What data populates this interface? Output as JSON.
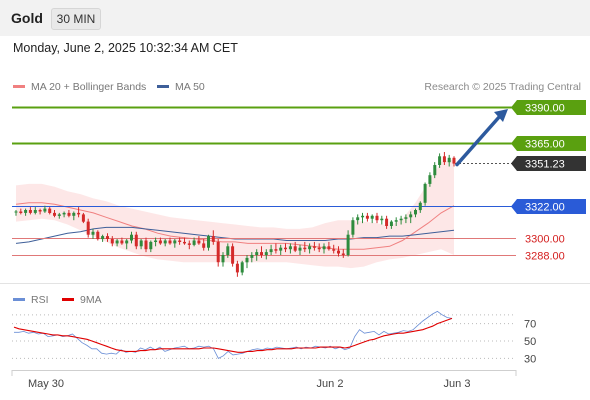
{
  "header": {
    "symbol": "Gold",
    "timeframe": "30 MIN",
    "datetime": "Monday, June 2, 2025 10:32:34 AM CET",
    "watermark": "Research © 2025 Trading Central"
  },
  "legend": {
    "ma20": "MA 20 + Bollinger Bands",
    "ma50": "MA 50",
    "rsi": "RSI",
    "rsi_ma": "9MA"
  },
  "colors": {
    "up": "#2e8b3d",
    "down": "#d42a2a",
    "ma20": "#f08080",
    "ma50": "#3e5f99",
    "band": "#fde3e3",
    "target": "#5aa010",
    "pivot": "#2a5bd7",
    "support": "#e07878",
    "current": "#333333",
    "arrow": "#2d5a9e",
    "rsi": "#6b8fd6",
    "rsi_ma": "#e00000"
  },
  "chart_data": [
    {
      "type": "candlestick",
      "title": "Gold",
      "timeframe": "30 MIN",
      "x_ticks": [
        "May 30",
        "Jun 2",
        "Jun 3"
      ],
      "y_range": [
        3270,
        3400
      ],
      "levels": [
        {
          "label": "3390.00",
          "value": 3390.0,
          "kind": "resistance"
        },
        {
          "label": "3365.00",
          "value": 3365.0,
          "kind": "resistance"
        },
        {
          "label": "3351.23",
          "value": 3351.23,
          "kind": "current"
        },
        {
          "label": "3322.00",
          "value": 3322.0,
          "kind": "pivot"
        },
        {
          "label": "3300.00",
          "value": 3300.0,
          "kind": "support"
        },
        {
          "label": "3288.00",
          "value": 3288.0,
          "kind": "support"
        }
      ],
      "forecast_arrow": {
        "from": 3351,
        "to": 3390,
        "direction": "up"
      },
      "candles": [
        [
          3318,
          3319,
          3315,
          3318
        ],
        [
          3318,
          3320,
          3316,
          3317
        ],
        [
          3317,
          3320,
          3315,
          3319
        ],
        [
          3319,
          3321,
          3316,
          3317
        ],
        [
          3317,
          3321,
          3316,
          3319
        ],
        [
          3319,
          3320,
          3316,
          3318
        ],
        [
          3318,
          3322,
          3317,
          3320
        ],
        [
          3320,
          3321,
          3316,
          3317
        ],
        [
          3317,
          3319,
          3314,
          3315
        ],
        [
          3315,
          3317,
          3313,
          3316
        ],
        [
          3316,
          3318,
          3314,
          3317
        ],
        [
          3317,
          3319,
          3314,
          3315
        ],
        [
          3315,
          3318,
          3312,
          3317
        ],
        [
          3317,
          3321,
          3314,
          3316
        ],
        [
          3316,
          3317,
          3310,
          3311
        ],
        [
          3311,
          3313,
          3300,
          3302
        ],
        [
          3302,
          3306,
          3299,
          3304
        ],
        [
          3304,
          3305,
          3298,
          3299
        ],
        [
          3299,
          3302,
          3297,
          3301
        ],
        [
          3301,
          3303,
          3297,
          3299
        ],
        [
          3299,
          3301,
          3294,
          3296
        ],
        [
          3296,
          3299,
          3294,
          3298
        ],
        [
          3298,
          3300,
          3295,
          3296
        ],
        [
          3296,
          3299,
          3292,
          3298
        ],
        [
          3298,
          3304,
          3296,
          3302
        ],
        [
          3302,
          3304,
          3292,
          3294
        ],
        [
          3294,
          3299,
          3292,
          3298
        ],
        [
          3298,
          3300,
          3290,
          3292
        ],
        [
          3292,
          3298,
          3290,
          3297
        ],
        [
          3297,
          3300,
          3294,
          3298
        ],
        [
          3298,
          3300,
          3295,
          3296
        ],
        [
          3296,
          3299,
          3294,
          3298
        ],
        [
          3298,
          3300,
          3295,
          3296
        ],
        [
          3296,
          3299,
          3293,
          3298
        ],
        [
          3298,
          3300,
          3295,
          3297
        ],
        [
          3297,
          3300,
          3295,
          3296
        ],
        [
          3296,
          3298,
          3292,
          3295
        ],
        [
          3295,
          3300,
          3294,
          3298
        ],
        [
          3298,
          3301,
          3295,
          3296
        ],
        [
          3296,
          3299,
          3291,
          3293
        ],
        [
          3293,
          3302,
          3291,
          3301
        ],
        [
          3301,
          3305,
          3295,
          3297
        ],
        [
          3297,
          3299,
          3280,
          3283
        ],
        [
          3283,
          3290,
          3280,
          3288
        ],
        [
          3288,
          3296,
          3286,
          3294
        ],
        [
          3294,
          3296,
          3280,
          3282
        ],
        [
          3282,
          3284,
          3273,
          3276
        ],
        [
          3276,
          3284,
          3274,
          3283
        ],
        [
          3283,
          3288,
          3279,
          3286
        ],
        [
          3286,
          3290,
          3283,
          3288
        ],
        [
          3288,
          3292,
          3284,
          3290
        ],
        [
          3290,
          3294,
          3286,
          3288
        ],
        [
          3288,
          3292,
          3285,
          3290
        ],
        [
          3290,
          3295,
          3288,
          3292
        ],
        [
          3292,
          3296,
          3289,
          3291
        ],
        [
          3291,
          3295,
          3288,
          3293
        ],
        [
          3293,
          3296,
          3290,
          3292
        ],
        [
          3292,
          3296,
          3289,
          3294
        ],
        [
          3294,
          3297,
          3290,
          3291
        ],
        [
          3291,
          3295,
          3288,
          3293
        ],
        [
          3293,
          3297,
          3290,
          3292
        ],
        [
          3292,
          3296,
          3289,
          3294
        ],
        [
          3294,
          3297,
          3291,
          3293
        ],
        [
          3293,
          3296,
          3290,
          3292
        ],
        [
          3292,
          3296,
          3289,
          3294
        ],
        [
          3294,
          3297,
          3291,
          3292
        ],
        [
          3292,
          3295,
          3289,
          3291
        ],
        [
          3291,
          3294,
          3287,
          3289
        ],
        [
          3289,
          3292,
          3286,
          3288
        ],
        [
          3288,
          3305,
          3287,
          3302
        ],
        [
          3302,
          3314,
          3300,
          3312
        ],
        [
          3312,
          3316,
          3309,
          3314
        ],
        [
          3314,
          3317,
          3310,
          3315
        ],
        [
          3315,
          3317,
          3311,
          3313
        ],
        [
          3313,
          3316,
          3310,
          3315
        ],
        [
          3315,
          3317,
          3310,
          3312
        ],
        [
          3312,
          3315,
          3309,
          3313
        ],
        [
          3313,
          3315,
          3306,
          3308
        ],
        [
          3308,
          3312,
          3306,
          3311
        ],
        [
          3311,
          3314,
          3308,
          3312
        ],
        [
          3312,
          3315,
          3309,
          3313
        ],
        [
          3313,
          3316,
          3310,
          3314
        ],
        [
          3314,
          3318,
          3310,
          3316
        ],
        [
          3316,
          3320,
          3314,
          3319
        ],
        [
          3319,
          3325,
          3317,
          3324
        ],
        [
          3324,
          3338,
          3322,
          3337
        ],
        [
          3337,
          3345,
          3335,
          3343
        ],
        [
          3343,
          3352,
          3341,
          3350
        ],
        [
          3350,
          3358,
          3348,
          3356
        ],
        [
          3356,
          3359,
          3350,
          3352
        ],
        [
          3352,
          3357,
          3349,
          3355
        ],
        [
          3355,
          3356,
          3349,
          3351
        ]
      ],
      "moving_averages": [
        {
          "name": "MA 20",
          "values": [
            3323,
            3324,
            3324,
            3323,
            3321,
            3319,
            3317,
            3314,
            3311,
            3308,
            3306,
            3303,
            3301,
            3300,
            3299,
            3298,
            3297,
            3297,
            3296,
            3296,
            3296,
            3296,
            3295,
            3294,
            3293,
            3292,
            3292,
            3292,
            3293,
            3294,
            3298,
            3304,
            3310,
            3317,
            3322
          ]
        },
        {
          "name": "MA 50",
          "values": [
            3296,
            3297,
            3299,
            3301,
            3303,
            3304,
            3306,
            3307,
            3307,
            3307,
            3306,
            3305,
            3304,
            3303,
            3302,
            3301,
            3300,
            3299,
            3299,
            3299,
            3299,
            3298,
            3298,
            3298,
            3298,
            3299,
            3299,
            3300,
            3300,
            3301,
            3301,
            3302,
            3303,
            3304,
            3305
          ]
        }
      ],
      "bollinger_bands": {
        "upper": [
          3336,
          3337,
          3337,
          3335,
          3332,
          3330,
          3327,
          3325,
          3322,
          3320,
          3318,
          3316,
          3314,
          3313,
          3312,
          3311,
          3310,
          3309,
          3308,
          3307,
          3307,
          3306,
          3306,
          3307,
          3310,
          3312,
          3312,
          3311,
          3310,
          3308,
          3313,
          3324,
          3338,
          3352,
          3354
        ],
        "lower": [
          3311,
          3312,
          3313,
          3312,
          3309,
          3305,
          3301,
          3297,
          3293,
          3290,
          3287,
          3285,
          3284,
          3283,
          3283,
          3283,
          3283,
          3283,
          3283,
          3283,
          3283,
          3283,
          3282,
          3281,
          3280,
          3280,
          3279,
          3280,
          3283,
          3285,
          3286,
          3288,
          3290,
          3292,
          3288
        ]
      }
    },
    {
      "type": "line",
      "title": "RSI",
      "y_ticks": [
        70,
        50,
        30
      ],
      "y_range": [
        20,
        90
      ],
      "gridlines": [
        30,
        50,
        70,
        80
      ],
      "series": [
        {
          "name": "RSI",
          "values": [
            60,
            60,
            61,
            59,
            60,
            58,
            59,
            55,
            56,
            57,
            55,
            56,
            58,
            53,
            48,
            45,
            41,
            41,
            36,
            35,
            36,
            35,
            40,
            37,
            38,
            37,
            42,
            40,
            43,
            40,
            43,
            38,
            40,
            42,
            43,
            44,
            41,
            42,
            44,
            43,
            44,
            41,
            30,
            33,
            38,
            34,
            35,
            36,
            38,
            40,
            41,
            40,
            42,
            41,
            43,
            42,
            41,
            42,
            43,
            41,
            43,
            42,
            44,
            43,
            42,
            44,
            41,
            43,
            40,
            42,
            55,
            63,
            59,
            60,
            61,
            57,
            61,
            58,
            59,
            60,
            62,
            61,
            63,
            68,
            73,
            77,
            81,
            84,
            80,
            77,
            76
          ]
        },
        {
          "name": "9MA",
          "values": [
            66,
            64,
            63,
            62,
            61,
            60,
            59,
            58,
            57,
            57,
            56,
            56,
            55,
            54,
            53,
            52,
            50,
            48,
            46,
            44,
            42,
            40,
            39,
            38,
            38,
            38,
            39,
            39,
            40,
            40,
            41,
            41,
            41,
            41,
            41,
            41,
            41,
            41,
            41,
            42,
            42,
            42,
            41,
            40,
            39,
            38,
            37,
            37,
            38,
            38,
            39,
            39,
            40,
            40,
            41,
            41,
            41,
            41,
            42,
            42,
            42,
            42,
            42,
            43,
            43,
            43,
            43,
            43,
            42,
            43,
            45,
            47,
            49,
            51,
            52,
            54,
            56,
            57,
            58,
            59,
            59,
            60,
            61,
            62,
            63,
            65,
            67,
            70,
            72,
            74,
            76
          ]
        }
      ]
    }
  ]
}
